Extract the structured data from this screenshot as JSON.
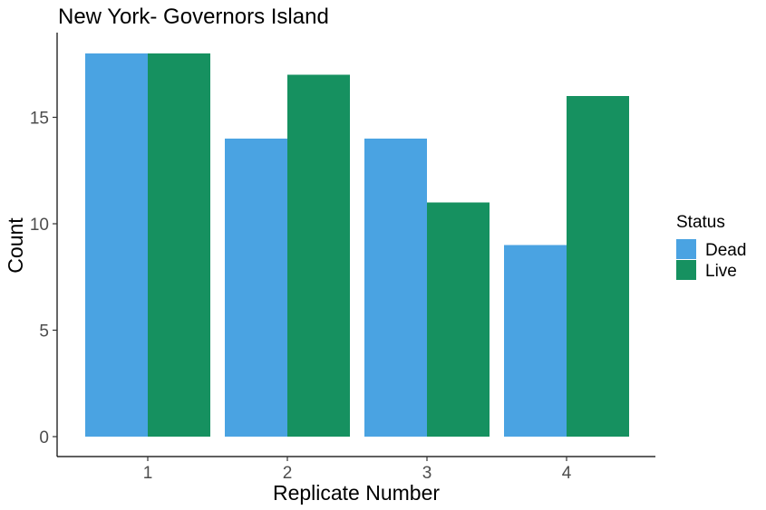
{
  "chart_data": {
    "type": "bar",
    "title": "New York- Governors Island",
    "xlabel": "Replicate Number",
    "ylabel": "Count",
    "categories": [
      "1",
      "2",
      "3",
      "4"
    ],
    "series": [
      {
        "name": "Dead",
        "color": "#4aa3e2",
        "values": [
          18,
          14,
          14,
          9
        ]
      },
      {
        "name": "Live",
        "color": "#169160",
        "values": [
          18,
          17,
          11,
          16
        ]
      }
    ],
    "ylim": [
      0,
      18
    ],
    "yticks": [
      0,
      5,
      10,
      15
    ],
    "grid": false,
    "legend": {
      "title": "Status",
      "position": "right"
    }
  }
}
